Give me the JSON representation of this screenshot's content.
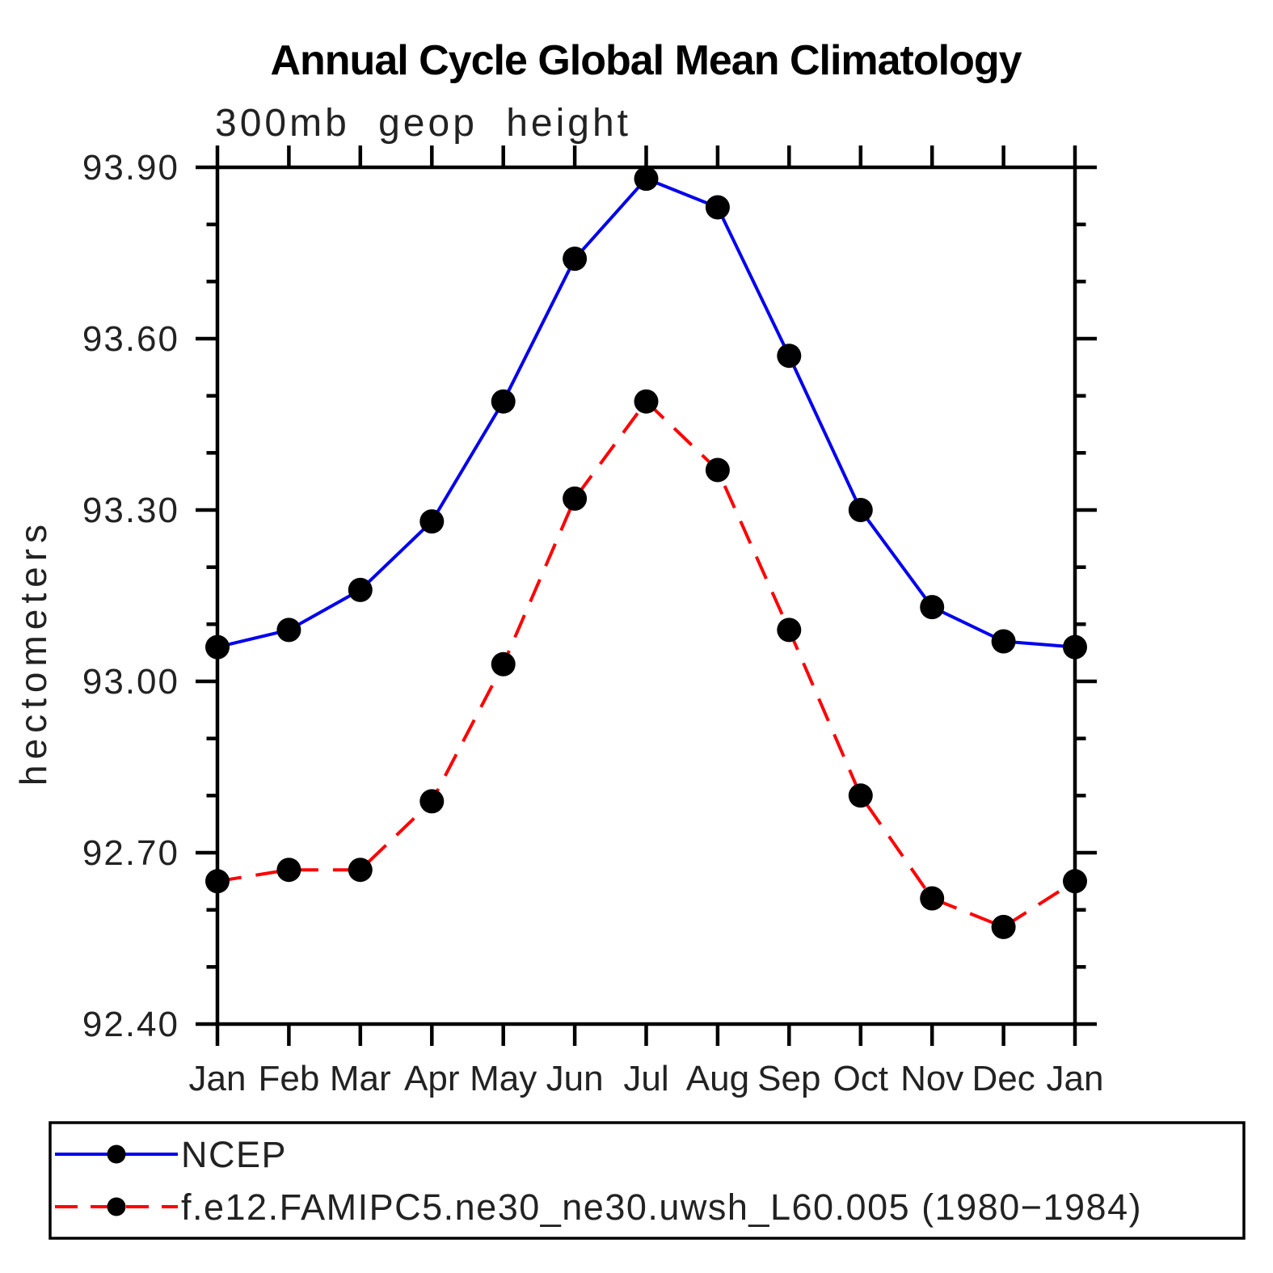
{
  "title": "Annual Cycle Global Mean Climatology",
  "subtitle": "300mb geop height",
  "y_axis_label": "hectometers",
  "chart_data": {
    "type": "line",
    "categories": [
      "Jan",
      "Feb",
      "Mar",
      "Apr",
      "May",
      "Jun",
      "Jul",
      "Aug",
      "Sep",
      "Oct",
      "Nov",
      "Dec",
      "Jan"
    ],
    "series": [
      {
        "name": "NCEP",
        "color": "#0000ee",
        "line_style": "solid",
        "marker": "filled-circle",
        "marker_color": "#000000",
        "values": [
          93.06,
          93.09,
          93.16,
          93.28,
          93.49,
          93.74,
          93.88,
          93.83,
          93.57,
          93.3,
          93.13,
          93.07,
          93.06
        ]
      },
      {
        "name": "f.e12.FAMIPC5.ne30_ne30.uwsh_L60.005 (1980−1984)",
        "color": "#ff0000",
        "line_style": "dashed",
        "marker": "filled-circle",
        "marker_color": "#000000",
        "values": [
          92.65,
          92.67,
          92.67,
          92.79,
          93.03,
          93.32,
          93.49,
          93.37,
          93.09,
          92.8,
          92.62,
          92.57,
          92.65
        ]
      }
    ],
    "ylim": [
      92.4,
      93.9
    ],
    "y_major_tick_labels": [
      "93.90",
      "93.60",
      "93.30",
      "93.00",
      "92.70",
      "92.40"
    ],
    "y_major_tick_step": 0.3,
    "y_minor_tick_step": 0.1,
    "x_tick_positions": "every month, ticks outward top and bottom",
    "grid": false,
    "legend_position": "bottom box",
    "axis_color": "#000000",
    "background_color": "#ffffff"
  }
}
